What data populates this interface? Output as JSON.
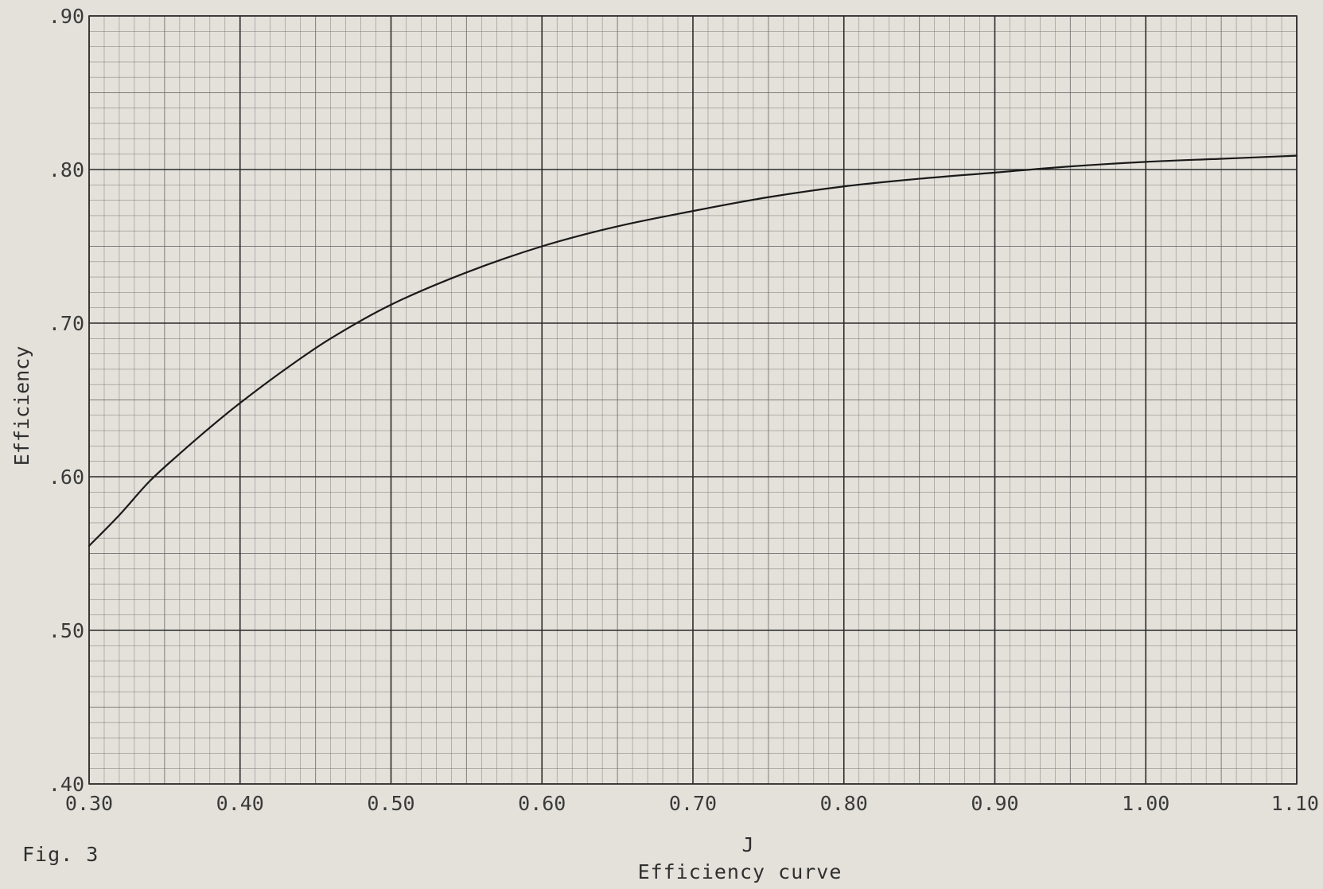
{
  "chart_data": {
    "type": "line",
    "xlabel": "J",
    "ylabel": "Efficiency",
    "title": "",
    "figure_label": "Fig. 3",
    "caption": "Efficiency curve",
    "xlim": [
      0.3,
      1.1
    ],
    "ylim": [
      0.4,
      0.9
    ],
    "x_ticks": [
      0.3,
      0.4,
      0.5,
      0.6,
      0.7,
      0.8,
      0.9,
      1.0,
      1.1
    ],
    "x_tick_labels": [
      "0.30",
      "0.40",
      "0.50",
      "0.60",
      "0.70",
      "0.80",
      "0.90",
      "1.00",
      "1.10"
    ],
    "y_ticks": [
      0.4,
      0.5,
      0.6,
      0.7,
      0.8,
      0.9
    ],
    "y_tick_labels": [
      ".40",
      ".50",
      ".60",
      ".70",
      ".80",
      ".90"
    ],
    "grid": true,
    "series": [
      {
        "x": [
          0.3,
          0.32,
          0.34,
          0.36,
          0.38,
          0.4,
          0.43,
          0.46,
          0.5,
          0.55,
          0.6,
          0.65,
          0.7,
          0.75,
          0.8,
          0.85,
          0.9,
          0.95,
          1.0,
          1.05,
          1.1
        ],
        "y": [
          0.555,
          0.575,
          0.597,
          0.615,
          0.632,
          0.648,
          0.67,
          0.69,
          0.712,
          0.733,
          0.75,
          0.763,
          0.773,
          0.782,
          0.789,
          0.794,
          0.798,
          0.802,
          0.805,
          0.807,
          0.809
        ]
      }
    ],
    "colors": {
      "paper": "#e3e1da",
      "grid_major": "#2b2b2b",
      "grid_minor": "#6b6b6b",
      "curve": "#1a1a1a"
    }
  }
}
